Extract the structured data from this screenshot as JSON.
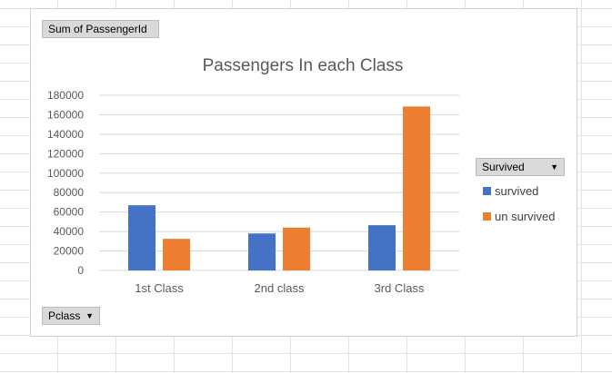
{
  "fields": {
    "values_label": "Sum of PassengerId",
    "axis_label": "Pclass",
    "legend_field_label": "Survived"
  },
  "colors": {
    "survived": "#4472C4",
    "un_survived": "#ED7D31",
    "grid": "#d9d9d9",
    "text": "#595959"
  },
  "chart_data": {
    "type": "bar",
    "title": "Passengers In each Class",
    "categories": [
      "1st Class",
      "2nd class",
      "3rd Class"
    ],
    "series": [
      {
        "name": "survived",
        "values": [
          67000,
          38000,
          46500
        ]
      },
      {
        "name": "un survived",
        "values": [
          32500,
          44000,
          168500
        ]
      }
    ],
    "ylim": [
      0,
      180000
    ],
    "yticks": [
      0,
      20000,
      40000,
      60000,
      80000,
      100000,
      120000,
      140000,
      160000,
      180000
    ],
    "grid": true,
    "legend": "right"
  }
}
